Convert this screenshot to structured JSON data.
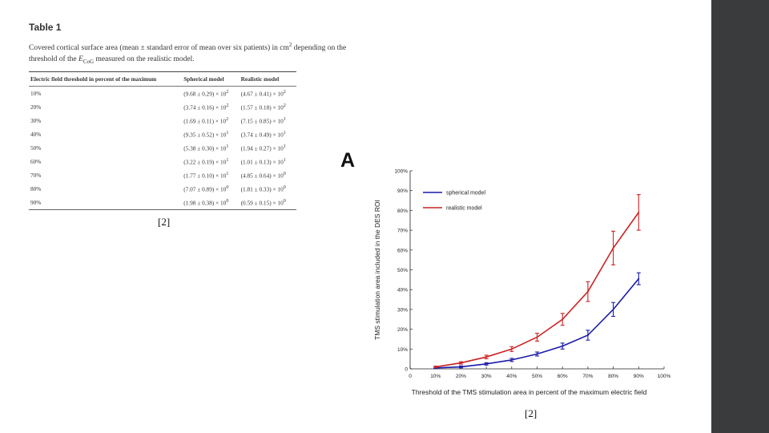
{
  "table": {
    "title": "Table 1",
    "caption_part1": "Covered cortical surface area (mean ± standard error of mean over six patients) in cm",
    "caption_exp": "2",
    "caption_part2": " depending on the threshold of the ",
    "caption_var": "E",
    "caption_sub": "CoG",
    "caption_part3": " measured on the realistic model.",
    "headers": [
      "Electric field threshold in percent of the maximum",
      "Spherical model",
      "Realistic model"
    ],
    "rows": [
      {
        "t": "10%",
        "s": "(9.68 ± 0.29) × 10",
        "se": "2",
        "r": "(4.67 ± 0.41) × 10",
        "re": "2"
      },
      {
        "t": "20%",
        "s": "(3.74 ± 0.16) × 10",
        "se": "2",
        "r": "(1.57 ± 0.18) × 10",
        "re": "2"
      },
      {
        "t": "30%",
        "s": "(1.69 ± 0.11) × 10",
        "se": "2",
        "r": "(7.15 ± 0.85) × 10",
        "re": "1"
      },
      {
        "t": "40%",
        "s": "(9.35 ± 0.52) × 10",
        "se": "1",
        "r": "(3.74 ± 0.49) × 10",
        "re": "1"
      },
      {
        "t": "50%",
        "s": "(5.38 ± 0.30) × 10",
        "se": "1",
        "r": "(1.94 ± 0.27) × 10",
        "re": "1"
      },
      {
        "t": "60%",
        "s": "(3.22 ± 0.19) × 10",
        "se": "1",
        "r": "(1.01 ± 0.13) × 10",
        "re": "1"
      },
      {
        "t": "70%",
        "s": "(1.77 ± 0.10) × 10",
        "se": "1",
        "r": "(4.85 ± 0.64) × 10",
        "re": "0"
      },
      {
        "t": "80%",
        "s": "(7.07 ± 0.89) × 10",
        "se": "0",
        "r": "(1.81 ± 0.33) × 10",
        "re": "0"
      },
      {
        "t": "90%",
        "s": "(1.98 ± 0.38) × 10",
        "se": "0",
        "r": "(0.59 ± 0.15) × 10",
        "re": "0"
      }
    ]
  },
  "refs": {
    "table_ref": "[2]",
    "chart_ref": "[2]"
  },
  "panel_letter": "A",
  "colors": {
    "spherical": "#1a1aa8",
    "realistic": "#cc2222",
    "sidebar": "#3a3b3c"
  },
  "chart_data": {
    "type": "line",
    "xlabel": "Threshold of the TMS stimulation area in percent of the maximum electric field",
    "ylabel": "TMS stimulation area included in the DES ROI",
    "x": [
      10,
      20,
      30,
      40,
      50,
      60,
      70,
      80,
      90
    ],
    "xlim": [
      0,
      100
    ],
    "ylim": [
      0,
      100
    ],
    "x_ticks": [
      "0",
      "10%",
      "20%",
      "30%",
      "40%",
      "50%",
      "60%",
      "70%",
      "80%",
      "90%",
      "100%"
    ],
    "y_ticks": [
      "0",
      "10%",
      "20%",
      "30%",
      "40%",
      "50%",
      "60%",
      "70%",
      "80%",
      "90%",
      "100%"
    ],
    "legend_position": "top-left",
    "series": [
      {
        "name": "spherical model",
        "color": "#1a1aa8",
        "values": [
          0.5,
          1,
          2.5,
          4.5,
          7.5,
          11.5,
          17,
          30,
          45.5
        ],
        "errors": [
          0.3,
          0.5,
          0.6,
          0.8,
          1,
          1.5,
          2.5,
          3.5,
          3
        ]
      },
      {
        "name": "realistic model",
        "color": "#cc2222",
        "values": [
          1,
          3,
          6,
          10,
          16,
          25,
          39,
          61,
          79
        ],
        "errors": [
          0.4,
          0.6,
          0.9,
          1.2,
          2,
          3,
          5,
          8.5,
          9
        ]
      }
    ]
  }
}
